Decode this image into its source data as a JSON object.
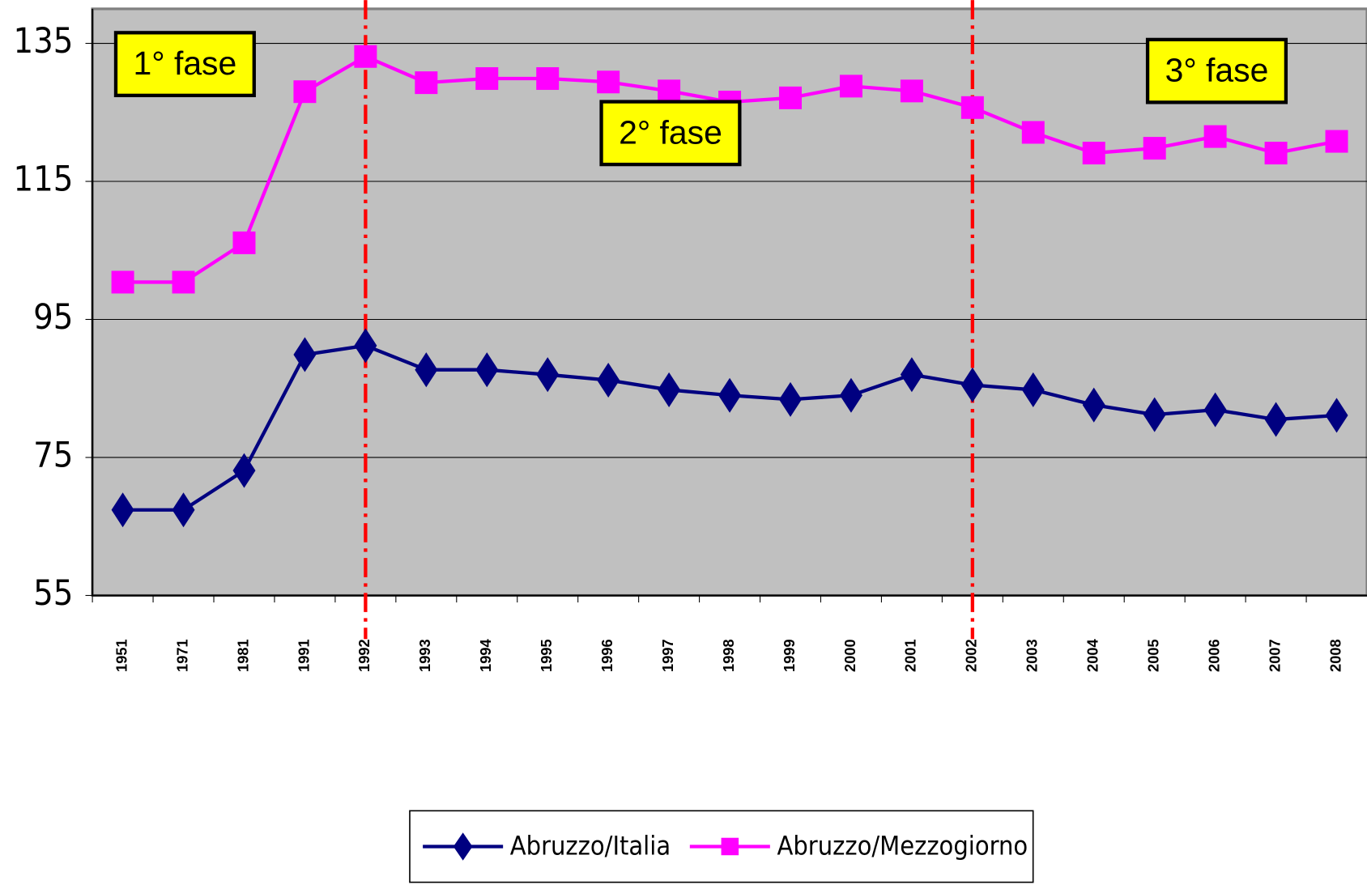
{
  "chart_data": {
    "type": "line",
    "categories": [
      "1951",
      "1971",
      "1981",
      "1991",
      "1992",
      "1993",
      "1994",
      "1995",
      "1996",
      "1997",
      "1998",
      "1999",
      "2000",
      "2001",
      "2002",
      "2003",
      "2004",
      "2005",
      "2006",
      "2007",
      "2008"
    ],
    "series": [
      {
        "name": "Abruzzo/Italia",
        "color": "#000080",
        "marker": "diamond",
        "values": [
          67.4,
          67.4,
          73.1,
          89.9,
          91.2,
          87.7,
          87.7,
          87.0,
          86.2,
          84.8,
          84.0,
          83.4,
          84.0,
          87.0,
          85.5,
          84.8,
          82.6,
          81.2,
          81.9,
          80.5,
          81.1
        ]
      },
      {
        "name": "Abruzzo/Mezzogiorno",
        "color": "#ff00ff",
        "marker": "square",
        "values": [
          100.4,
          100.4,
          106.1,
          128.0,
          133.1,
          129.3,
          129.9,
          129.9,
          129.4,
          128.1,
          126.5,
          127.1,
          128.8,
          128.1,
          125.7,
          122.1,
          119.1,
          119.8,
          121.5,
          119.1,
          120.8
        ]
      }
    ],
    "ylim": [
      55,
      140
    ],
    "yticks": [
      55,
      75,
      95,
      115,
      135
    ],
    "grid": true,
    "phase_lines": [
      "1992",
      "2002"
    ],
    "phase_line_color": "#ff0000",
    "annotations": [
      {
        "text": "1° fase",
        "category": "1951",
        "value": 132
      },
      {
        "text": "2° fase",
        "category": "1996",
        "value": 122
      },
      {
        "text": "3° fase",
        "category": "2005",
        "value": 131
      }
    ],
    "legend": "bottom"
  }
}
